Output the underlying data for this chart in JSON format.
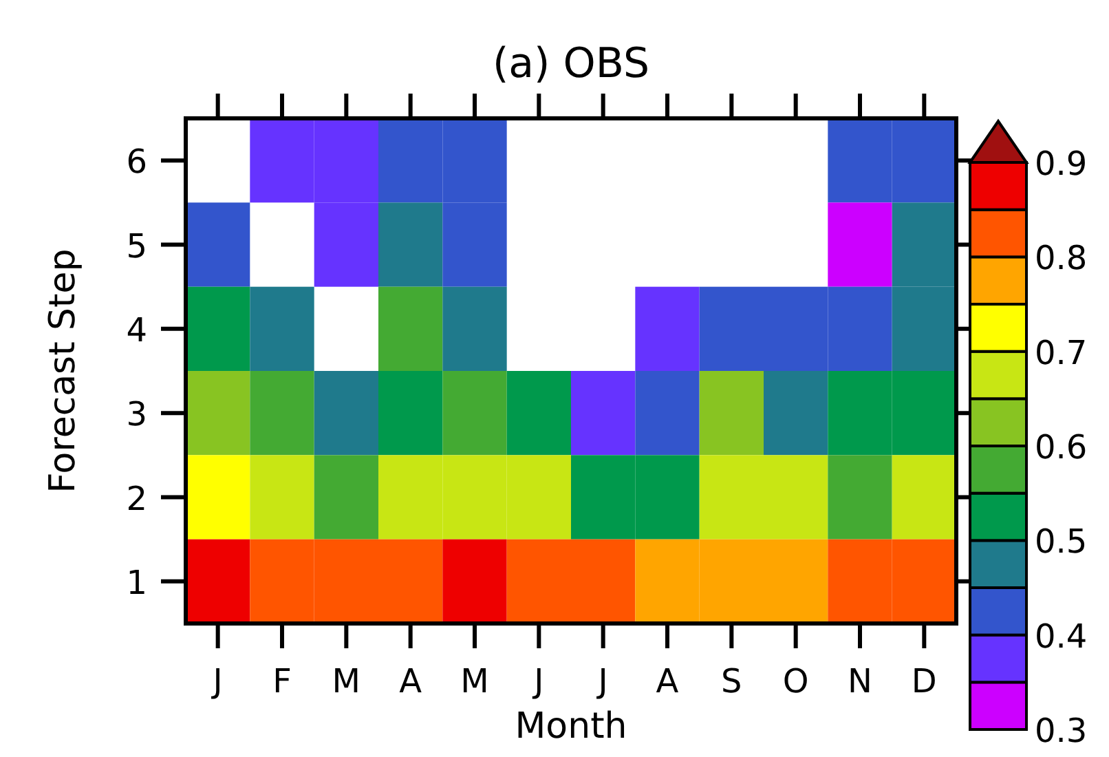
{
  "chart_data": {
    "type": "heatmap",
    "title": "(a) OBS",
    "xlabel": "Month",
    "ylabel": "Forecast Step",
    "categories": [
      "J",
      "F",
      "M",
      "A",
      "M",
      "J",
      "J",
      "A",
      "S",
      "O",
      "N",
      "D"
    ],
    "y_categories": [
      "6",
      "5",
      "4",
      "3",
      "2",
      "1"
    ],
    "cells": [
      [
        null,
        0.375,
        0.375,
        0.425,
        0.425,
        null,
        null,
        null,
        null,
        null,
        0.425,
        0.425
      ],
      [
        0.425,
        null,
        0.375,
        0.475,
        0.425,
        null,
        null,
        null,
        null,
        null,
        0.325,
        0.475
      ],
      [
        0.525,
        0.475,
        null,
        0.575,
        0.475,
        null,
        null,
        0.375,
        0.425,
        0.425,
        0.425,
        0.475
      ],
      [
        0.625,
        0.575,
        0.475,
        0.525,
        0.575,
        0.525,
        0.375,
        0.425,
        0.625,
        0.475,
        0.525,
        0.525
      ],
      [
        0.725,
        0.675,
        0.575,
        0.675,
        0.675,
        0.675,
        0.525,
        0.525,
        0.675,
        0.675,
        0.575,
        0.675
      ],
      [
        0.875,
        0.825,
        0.825,
        0.825,
        0.875,
        0.825,
        0.825,
        0.775,
        0.775,
        0.775,
        0.825,
        0.825
      ]
    ],
    "clim": [
      0.3,
      0.9
    ],
    "cticks": [
      0.3,
      0.4,
      0.5,
      0.6,
      0.7,
      0.8,
      0.9
    ]
  }
}
